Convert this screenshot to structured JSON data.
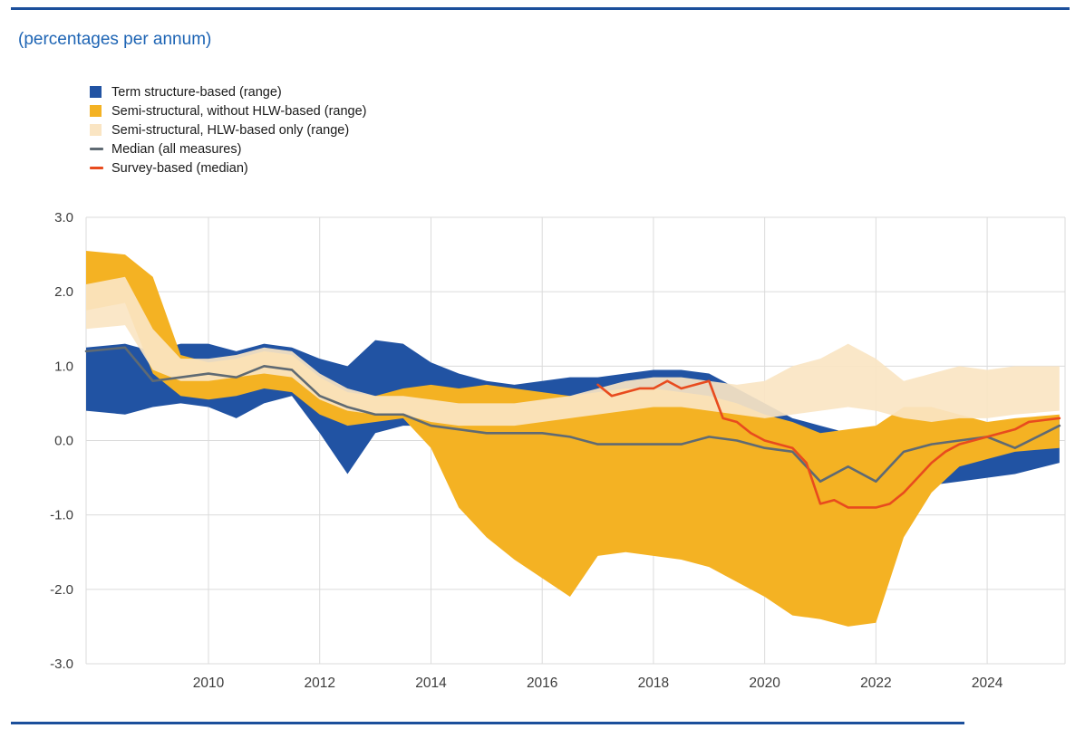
{
  "page": {
    "title": "(percentages per annum)"
  },
  "legend": [
    {
      "label": "Term structure-based (range)",
      "type": "band",
      "color": "#2153A3"
    },
    {
      "label": "Semi-structural, without HLW-based (range)",
      "type": "band",
      "color": "#F4B223"
    },
    {
      "label": "Semi-structural, HLW-based only (range)",
      "type": "band",
      "color": "#FAE5C3"
    },
    {
      "label": "Median (all measures)",
      "type": "line",
      "color": "#5F6A73"
    },
    {
      "label": "Survey-based (median)",
      "type": "line",
      "color": "#E84B1E"
    }
  ],
  "colors": {
    "rule_blue": "#1B4F9B",
    "title_blue": "#1D64B4",
    "band_blue": "#2153A3",
    "band_yellow": "#F4B223",
    "band_cream": "#FAE5C3",
    "line_gray": "#5F6A73",
    "line_red": "#E84B1E"
  },
  "chart_data": {
    "type": "area",
    "title": "(percentages per annum)",
    "ylabel": "",
    "xlabel": "",
    "ylim": [
      -3,
      3
    ],
    "xlim": [
      2007.8,
      2025.4
    ],
    "yticks": [
      3,
      2,
      1,
      0,
      -1,
      -2,
      -3
    ],
    "xticks": [
      2010,
      2012,
      2014,
      2016,
      2018,
      2020,
      2022,
      2024
    ],
    "grid_color": "#DBDBDB",
    "tick_color": "#3C3C3C",
    "legend_position": "top-left",
    "x": [
      2007.8,
      2008.5,
      2009,
      2009.5,
      2010,
      2010.5,
      2011,
      2011.5,
      2012,
      2012.5,
      2013,
      2013.5,
      2014,
      2014.5,
      2015,
      2015.5,
      2016,
      2016.5,
      2017,
      2017.5,
      2018,
      2018.5,
      2019,
      2019.5,
      2020,
      2020.5,
      2021,
      2021.5,
      2022,
      2022.5,
      2023,
      2023.5,
      2024,
      2024.5,
      2025.3
    ],
    "bands": [
      {
        "name": "Term structure-based (range)",
        "color": "#2153A3",
        "opacity": 1,
        "low": [
          0.4,
          0.35,
          0.45,
          0.5,
          0.45,
          0.3,
          0.5,
          0.6,
          0.1,
          -0.45,
          0.1,
          0.2,
          0.2,
          0.3,
          0.3,
          0.3,
          0.35,
          0.4,
          0.45,
          0.5,
          0.55,
          0.5,
          0.45,
          0.25,
          -0.05,
          -0.25,
          -0.4,
          -0.5,
          -0.5,
          -0.6,
          -0.6,
          -0.55,
          -0.5,
          -0.45,
          -0.3
        ],
        "high": [
          1.25,
          1.3,
          1.2,
          1.3,
          1.3,
          1.2,
          1.3,
          1.25,
          1.1,
          1.0,
          1.35,
          1.3,
          1.05,
          0.9,
          0.8,
          0.75,
          0.8,
          0.85,
          0.85,
          0.9,
          0.95,
          0.95,
          0.9,
          0.7,
          0.5,
          0.3,
          0.2,
          0.1,
          0.1,
          0.2,
          0.1,
          0.1,
          0.2,
          0.2,
          0.3
        ]
      },
      {
        "name": "Semi-structural, without HLW-based (range)",
        "color": "#F4B223",
        "opacity": 1,
        "low": [
          1.75,
          1.85,
          0.9,
          0.6,
          0.55,
          0.6,
          0.7,
          0.65,
          0.35,
          0.2,
          0.25,
          0.3,
          -0.1,
          -0.9,
          -1.3,
          -1.6,
          -1.85,
          -2.1,
          -1.55,
          -1.5,
          -1.55,
          -1.6,
          -1.7,
          -1.9,
          -2.1,
          -2.35,
          -2.4,
          -2.5,
          -2.45,
          -1.3,
          -0.7,
          -0.35,
          -0.25,
          -0.15,
          -0.1
        ],
        "high": [
          2.55,
          2.5,
          2.2,
          1.15,
          1.05,
          1.1,
          1.2,
          1.15,
          0.85,
          0.65,
          0.6,
          0.7,
          0.75,
          0.7,
          0.75,
          0.7,
          0.65,
          0.6,
          0.65,
          0.7,
          0.7,
          0.65,
          0.6,
          0.5,
          0.35,
          0.25,
          0.1,
          0.15,
          0.2,
          0.45,
          0.45,
          0.35,
          0.25,
          0.3,
          0.35
        ]
      },
      {
        "name": "Semi-structural, HLW-based only (range)",
        "color": "#FAE5C3",
        "opacity": 0.92,
        "low": [
          1.5,
          1.55,
          0.95,
          0.8,
          0.8,
          0.85,
          0.9,
          0.85,
          0.55,
          0.4,
          0.35,
          0.35,
          0.25,
          0.2,
          0.2,
          0.2,
          0.25,
          0.3,
          0.35,
          0.4,
          0.45,
          0.45,
          0.4,
          0.35,
          0.3,
          0.35,
          0.4,
          0.45,
          0.4,
          0.3,
          0.25,
          0.3,
          0.3,
          0.35,
          0.4
        ],
        "high": [
          2.1,
          2.2,
          1.5,
          1.1,
          1.1,
          1.15,
          1.25,
          1.2,
          0.9,
          0.7,
          0.6,
          0.6,
          0.55,
          0.5,
          0.5,
          0.5,
          0.55,
          0.6,
          0.7,
          0.8,
          0.85,
          0.85,
          0.8,
          0.75,
          0.8,
          1.0,
          1.1,
          1.3,
          1.1,
          0.8,
          0.9,
          1.0,
          0.95,
          1.0,
          1.0
        ]
      }
    ],
    "lines": [
      {
        "name": "Median (all measures)",
        "color": "#5F6A73",
        "values": [
          1.2,
          1.25,
          0.8,
          0.85,
          0.9,
          0.85,
          1.0,
          0.95,
          0.6,
          0.45,
          0.35,
          0.35,
          0.2,
          0.15,
          0.1,
          0.1,
          0.1,
          0.05,
          -0.05,
          -0.05,
          -0.05,
          -0.05,
          0.05,
          0.0,
          -0.1,
          -0.15,
          -0.55,
          -0.35,
          -0.55,
          -0.15,
          -0.05,
          0.0,
          0.05,
          -0.1,
          0.2
        ]
      },
      {
        "name": "Survey-based (median)",
        "color": "#E84B1E",
        "x": [
          2017,
          2017.25,
          2017.5,
          2017.75,
          2018,
          2018.25,
          2018.5,
          2018.75,
          2019,
          2019.25,
          2019.5,
          2019.75,
          2020,
          2020.25,
          2020.5,
          2020.75,
          2021,
          2021.25,
          2021.5,
          2021.75,
          2022,
          2022.25,
          2022.5,
          2022.75,
          2023,
          2023.25,
          2023.5,
          2023.75,
          2024,
          2024.25,
          2024.5,
          2024.75,
          2025.3
        ],
        "values": [
          0.75,
          0.6,
          0.65,
          0.7,
          0.7,
          0.8,
          0.7,
          0.75,
          0.8,
          0.3,
          0.25,
          0.1,
          0.0,
          -0.05,
          -0.1,
          -0.3,
          -0.85,
          -0.8,
          -0.9,
          -0.9,
          -0.9,
          -0.85,
          -0.7,
          -0.5,
          -0.3,
          -0.15,
          -0.05,
          0.0,
          0.05,
          0.1,
          0.15,
          0.25,
          0.3
        ]
      }
    ]
  }
}
